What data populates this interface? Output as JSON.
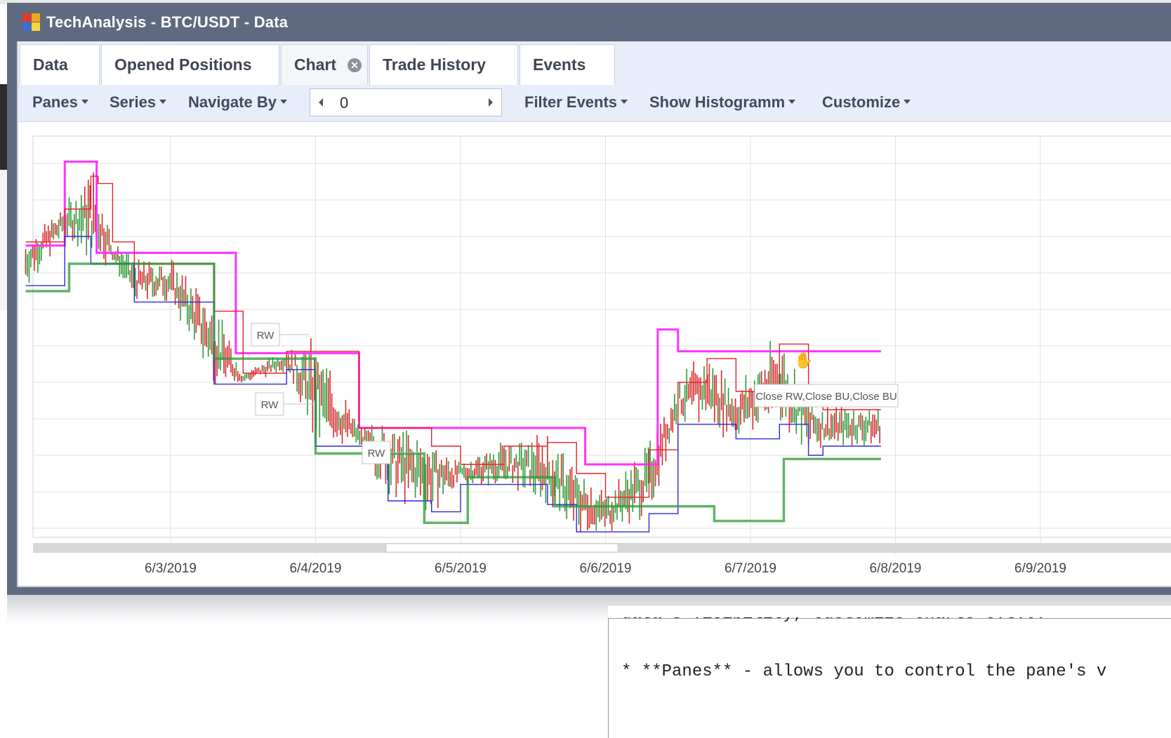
{
  "window": {
    "title": "TechAnalysis - BTC/USDT - Data"
  },
  "tabs": [
    {
      "label": "Data",
      "active": false
    },
    {
      "label": "Opened Positions",
      "active": false
    },
    {
      "label": "Chart",
      "active": true,
      "closable": true
    },
    {
      "label": "Trade History",
      "active": false
    },
    {
      "label": "Events",
      "active": false
    }
  ],
  "toolbar": {
    "panes": "Panes",
    "series": "Series",
    "navigate_by": "Navigate By",
    "navigator_value": "0",
    "filter_events": "Filter Events",
    "show_histogramm": "Show Histogramm",
    "customize": "Customize"
  },
  "chart_data": {
    "type": "line",
    "title": "",
    "x_tick_labels": [
      "6/3/2019",
      "6/4/2019",
      "6/5/2019",
      "6/6/2019",
      "6/7/2019",
      "6/8/2019",
      "6/9/2019"
    ],
    "x_range": [
      "6/2/2019",
      "6/9/2019"
    ],
    "grid": true,
    "legend": "none",
    "series": [
      {
        "style": "magenta-upper-step",
        "color": "#ff33ff",
        "x": [
          2.0,
          2.27,
          2.49,
          2.5,
          2.49,
          3.0,
          3.3,
          3.45,
          3.5,
          4.0,
          4.23,
          4.3,
          4.5,
          4.73,
          4.85,
          5.0,
          5.5,
          5.8,
          5.86,
          6.0,
          6.27,
          6.36,
          6.5,
          6.9,
          7.0,
          7.5,
          7.9
        ],
        "y": [
          8400,
          8860,
          8860,
          8860,
          8360,
          8360,
          8360,
          7810,
          7810,
          7810,
          7810,
          7400,
          7400,
          7400,
          7400,
          7400,
          7400,
          7400,
          7200,
          7200,
          7200,
          7940,
          7820,
          7820,
          7820,
          7820,
          7820
        ]
      },
      {
        "style": "red-upper-channel",
        "color": "#e8222a",
        "x": [
          2.0,
          2.27,
          2.45,
          2.5,
          2.6,
          2.75,
          3.0,
          3.3,
          3.5,
          3.8,
          4.0,
          4.3,
          4.5,
          4.8,
          5.0,
          5.3,
          5.6,
          5.8,
          6.0,
          6.3,
          6.5,
          6.7,
          6.9,
          7.2,
          7.4,
          7.5,
          7.9
        ],
        "y": [
          8420,
          8600,
          8780,
          8740,
          8420,
          8300,
          8300,
          8040,
          7700,
          7820,
          7820,
          7400,
          7400,
          7300,
          7200,
          7300,
          7320,
          7150,
          7020,
          7280,
          7650,
          7780,
          7600,
          7860,
          7560,
          7500,
          7500
        ]
      },
      {
        "style": "blue-lower-channel",
        "color": "#2a2ad8",
        "x": [
          2.0,
          2.27,
          2.45,
          2.6,
          2.75,
          3.0,
          3.3,
          3.5,
          3.8,
          4.0,
          4.3,
          4.5,
          4.8,
          5.0,
          5.3,
          5.6,
          5.8,
          6.0,
          6.3,
          6.5,
          6.7,
          6.9,
          7.2,
          7.4,
          7.5,
          7.9
        ],
        "y": [
          8180,
          8450,
          8300,
          8300,
          8090,
          8090,
          7640,
          7640,
          7720,
          7300,
          7300,
          7000,
          6940,
          7090,
          7090,
          6980,
          6830,
          6830,
          6930,
          7420,
          7420,
          7340,
          7420,
          7250,
          7300,
          7300
        ]
      },
      {
        "style": "green-lower-step",
        "color": "#2e9a37",
        "x": [
          2.0,
          2.29,
          2.3,
          3.0,
          3.28,
          3.3,
          3.98,
          4.0,
          4.73,
          4.75,
          5.02,
          5.05,
          5.64,
          5.65,
          6.74,
          6.75,
          7.22,
          7.23,
          7.9
        ],
        "y": [
          8150,
          8150,
          8300,
          8300,
          8300,
          7780,
          7780,
          7260,
          7260,
          6880,
          6880,
          7130,
          7130,
          6970,
          6970,
          6890,
          6890,
          7230,
          7230
        ]
      }
    ],
    "annotations": [
      "RW",
      "RW",
      "RW",
      "Close RW,Close BU,Close BU"
    ]
  },
  "editor": {
    "line1": "data's visibility, customize charts e.t.c.",
    "line2": "* **Panes** - allows you to control the pane's v"
  },
  "colors": {
    "titlebar": "#5f6a80",
    "tabbar": "#e7eef9",
    "upper_step": "#ff33ff",
    "upper_channel": "#e8222a",
    "lower_channel": "#2a2ad8",
    "lower_step": "#2e9a37",
    "candle_up": "#2e9a37",
    "candle_down": "#d62a2a"
  },
  "icons": {
    "app": "app-grid-icon",
    "tab_close": "close-circle-icon",
    "cursor": "hand-grab-cursor-icon"
  }
}
